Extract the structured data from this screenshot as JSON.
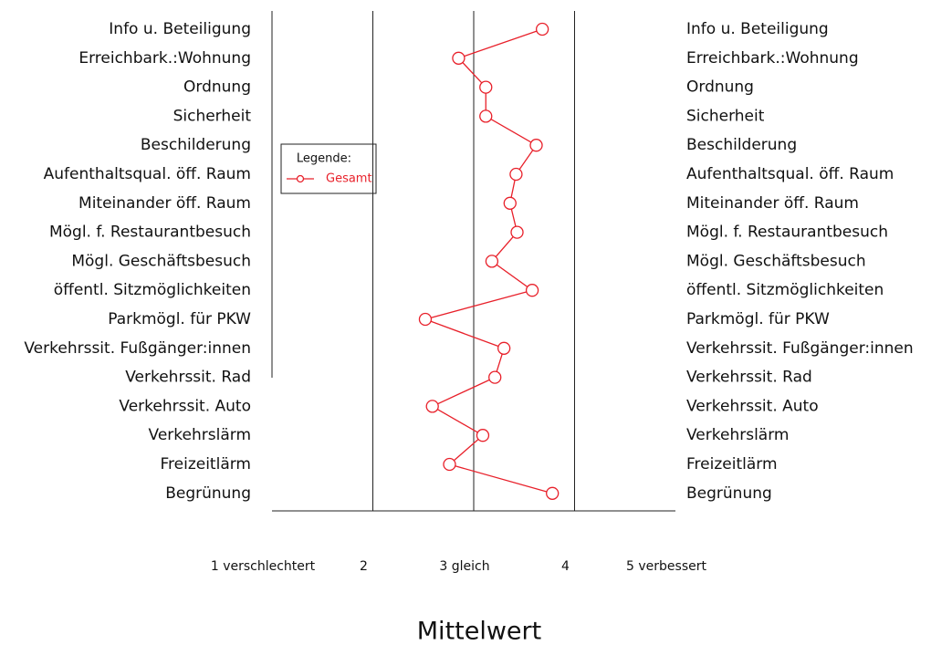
{
  "chart_data": {
    "type": "line",
    "categories": [
      "Info u. Beteiligung",
      "Erreichbark.:Wohnung",
      "Ordnung",
      "Sicherheit",
      "Beschilderung",
      "Aufenthaltsqual. öff. Raum",
      "Miteinander öff. Raum",
      "Mögl. f. Restaurantbesuch",
      "Mögl. Geschäftsbesuch",
      "öffentl. Sitzmöglichkeiten",
      "Parkmögl. für PKW",
      "Verkehrssit. Fußgänger:innen",
      "Verkehrssit. Rad",
      "Verkehrssit. Auto",
      "Verkehrslärm",
      "Freizeitlärm",
      "Begrünung"
    ],
    "series": [
      {
        "name": "Gesamt",
        "color": "#e8202a",
        "values": [
          3.68,
          2.85,
          3.12,
          3.12,
          3.62,
          3.42,
          3.36,
          3.43,
          3.18,
          3.58,
          2.52,
          3.3,
          3.21,
          2.59,
          3.09,
          2.76,
          3.78
        ]
      }
    ],
    "xlim": [
      1,
      5
    ],
    "xticks": [
      {
        "value": 1,
        "label": "1 verschlechtert"
      },
      2,
      {
        "value": 3,
        "label": "3 gleich"
      },
      4,
      {
        "value": 5,
        "label": "5 verbessert"
      }
    ],
    "xlabel": "Mittelwert",
    "legend_title": "Legende:",
    "grid": true
  }
}
